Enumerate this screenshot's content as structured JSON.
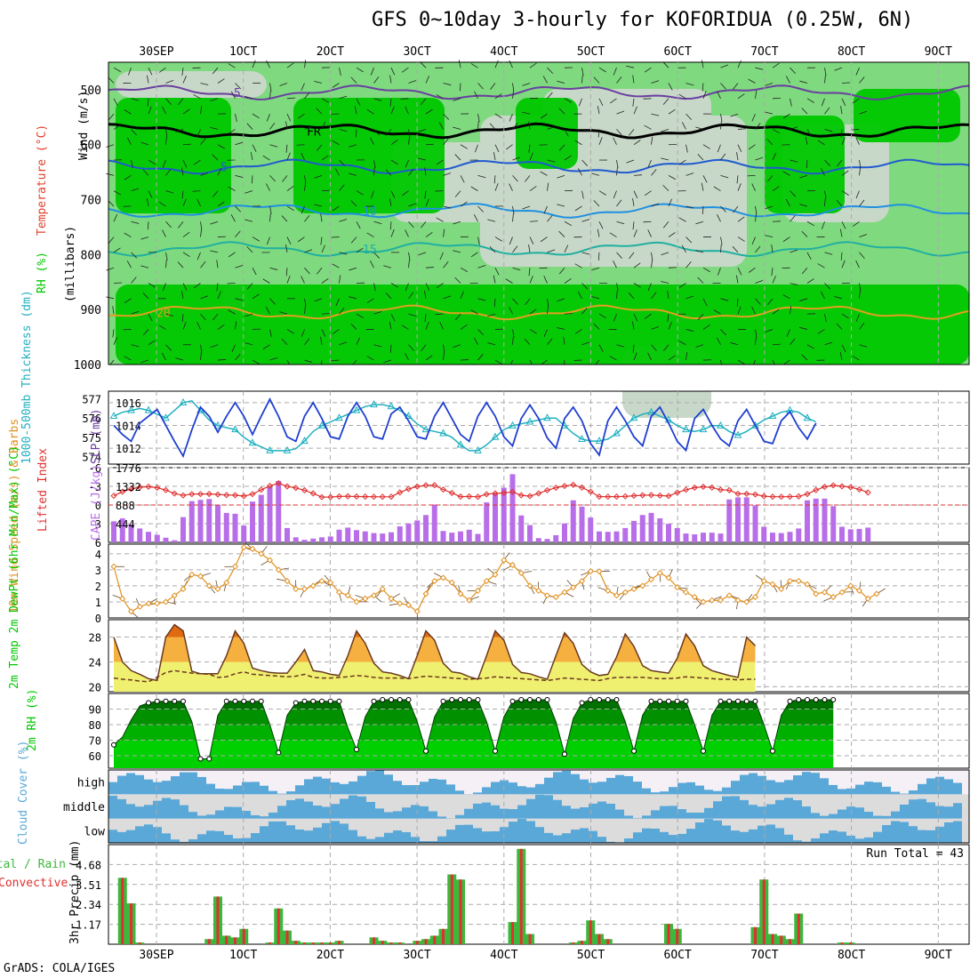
{
  "title": "GFS 0~10day 3-hourly for KOFORIDUA (0.25W, 6N)",
  "credit": "GrADS: COLA/IGES",
  "colors": {
    "rh_dark": "#00c800",
    "rh_mid": "#7fd97f",
    "rh_light": "#c8d8c8",
    "temp": "#e0412a",
    "wind": "#6a3fa0",
    "cape": "#b86ee8",
    "thick": "#20b0c0",
    "slp": "#1f3fd0",
    "wind10": "#e09020",
    "dew": "#6a3a20",
    "precip_total": "#3cb83c",
    "precip_conv": "#e03030",
    "cloud": "#5aa8d8"
  },
  "chart_data": [
    {
      "type": "heatmap",
      "name": "upper-air cross section",
      "ylabel_wind": "Wind (m/s)",
      "ylabel_temp": "Temperature (°C)",
      "ylabel_rh": "RH (%)",
      "ylabel_axis": "(millibars)",
      "x_ticks": [
        "30SEP",
        "1OCT",
        "2OCT",
        "3OCT",
        "4OCT",
        "5OCT",
        "6OCT",
        "7OCT",
        "8OCT",
        "9OCT"
      ],
      "y_ticks": [
        500,
        600,
        700,
        800,
        900,
        1000
      ],
      "ylim": [
        450,
        1000
      ],
      "isotherms": [
        {
          "label": "-5",
          "level": 505
        },
        {
          "label": "FR",
          "level": 575
        },
        {
          "label": "5",
          "level": 640
        },
        {
          "label": "10",
          "level": 720
        },
        {
          "label": "15",
          "level": 790
        },
        {
          "label": "20",
          "level": 905
        }
      ]
    },
    {
      "type": "line",
      "name": "thickness and slp",
      "ylabel_left": "1000-500mb Thickness (dm)",
      "ylabel_right": "SLP (mb)",
      "left_ticks": [
        574,
        575,
        576,
        577
      ],
      "right_ticks": [
        1012,
        1014,
        1016
      ],
      "thickness": [
        576.1,
        576.3,
        576.4,
        576.5,
        576.4,
        576.2,
        576.0,
        576.4,
        576.8,
        576.9,
        576.4,
        575.9,
        575.6,
        575.5,
        575.4,
        575.0,
        574.7,
        574.5,
        574.3,
        574.3,
        574.3,
        574.4,
        574.8,
        575.3,
        575.6,
        575.8,
        576.0,
        576.2,
        576.4,
        576.6,
        576.7,
        576.7,
        576.6,
        576.4,
        576.1,
        575.7,
        575.4,
        575.3,
        575.2,
        575.0,
        574.6,
        574.3,
        574.3,
        574.6,
        575.0,
        575.4,
        575.6,
        575.7,
        575.8,
        575.9,
        576.0,
        576.0,
        575.6,
        575.2,
        574.9,
        574.8,
        574.8,
        574.9,
        575.2,
        575.6,
        576.0,
        576.2,
        576.3,
        576.1,
        575.9,
        575.6,
        575.4,
        575.3,
        575.4,
        575.6,
        575.6,
        575.3,
        575.1,
        575.3,
        575.6,
        575.9,
        576.1,
        576.3,
        576.4,
        576.3,
        576.0,
        575.8
      ],
      "slp": [
        1014.0,
        1013.2,
        1012.6,
        1014.2,
        1014.8,
        1015.4,
        1014.0,
        1012.6,
        1011.3,
        1013.6,
        1015.6,
        1014.8,
        1013.4,
        1014.8,
        1016.0,
        1014.8,
        1013.2,
        1014.8,
        1016.3,
        1014.8,
        1013.0,
        1012.6,
        1014.8,
        1016.0,
        1014.6,
        1013.0,
        1012.8,
        1014.8,
        1016.0,
        1014.8,
        1013.0,
        1012.8,
        1015.0,
        1015.6,
        1014.4,
        1013.0,
        1012.8,
        1014.8,
        1016.0,
        1014.6,
        1013.2,
        1012.6,
        1014.8,
        1016.0,
        1014.8,
        1013.0,
        1012.2,
        1014.6,
        1015.8,
        1014.6,
        1012.9,
        1012.0,
        1014.6,
        1015.6,
        1014.4,
        1012.4,
        1011.4,
        1014.4,
        1015.6,
        1014.4,
        1013.0,
        1012.2,
        1014.8,
        1015.6,
        1014.2,
        1012.6,
        1011.8,
        1014.6,
        1015.4,
        1014.0,
        1012.8,
        1012.2,
        1014.4,
        1015.4,
        1014.0,
        1012.6,
        1012.4,
        1014.4,
        1015.2,
        1013.8,
        1012.8,
        1014.2
      ]
    },
    {
      "type": "bar",
      "name": "cape and lifted index",
      "ylabel_left": "Lifted Index",
      "ylabel_right": "CAPE (J/kg)",
      "left_ticks": [
        -6,
        -3,
        0,
        3,
        6
      ],
      "right_ticks": [
        444,
        888,
        1332,
        1776
      ],
      "cape": [
        500,
        570,
        430,
        330,
        250,
        180,
        110,
        50,
        600,
        980,
        1010,
        1030,
        880,
        700,
        680,
        400,
        970,
        1130,
        1320,
        1460,
        340,
        120,
        60,
        90,
        120,
        140,
        300,
        350,
        290,
        260,
        220,
        210,
        240,
        380,
        450,
        520,
        650,
        900,
        270,
        230,
        260,
        300,
        200,
        950,
        1180,
        1300,
        1620,
        640,
        410,
        100,
        80,
        170,
        450,
        1000,
        850,
        590,
        260,
        250,
        260,
        340,
        510,
        650,
        700,
        570,
        440,
        340,
        210,
        190,
        230,
        230,
        210,
        1020,
        1070,
        1070,
        880,
        370,
        230,
        220,
        250,
        330,
        1000,
        1040,
        1040,
        860,
        370,
        310,
        320,
        350
      ]
    },
    {
      "type": "line",
      "name": "10m wind speed",
      "ylabel": "10m Wind Speed (m/s) & Barbs",
      "y_ticks": [
        0,
        1,
        2,
        3,
        4
      ],
      "values": [
        3.2,
        1.2,
        0.4,
        0.7,
        0.9,
        0.9,
        1.0,
        1.4,
        1.8,
        2.7,
        2.6,
        2.0,
        1.8,
        2.2,
        3.2,
        4.4,
        4.3,
        4.0,
        3.6,
        3.0,
        2.3,
        1.8,
        1.8,
        2.0,
        2.3,
        2.2,
        1.6,
        1.4,
        1.0,
        1.2,
        1.4,
        1.8,
        1.2,
        0.9,
        0.8,
        0.4,
        1.5,
        2.3,
        2.5,
        2.2,
        1.5,
        1.1,
        1.7,
        2.3,
        2.7,
        3.6,
        3.3,
        2.8,
        2.0,
        1.7,
        1.4,
        1.3,
        1.6,
        1.9,
        2.3,
        2.9,
        2.9,
        1.7,
        1.4,
        1.6,
        1.8,
        2.0,
        2.4,
        2.8,
        2.5,
        1.9,
        1.6,
        1.3,
        1.0,
        1.1,
        1.1,
        1.4,
        1.1,
        1.0,
        1.3,
        2.3,
        2.1,
        1.8,
        2.3,
        2.3,
        2.1,
        1.5,
        1.6,
        1.3,
        1.6,
        2.0,
        1.7,
        1.2,
        1.5
      ]
    },
    {
      "type": "area",
      "name": "2m temperature",
      "ylabel": "2m Temp 2m DewPt (6hr Min/Max) (°C)",
      "y_ticks": [
        20,
        24,
        28
      ],
      "temp": [
        28,
        24,
        22.6,
        22,
        21.3,
        21,
        28,
        30,
        29,
        22.5,
        22.1,
        22.1,
        22.1,
        25,
        29,
        27,
        23,
        22.6,
        22.3,
        22.2,
        22.2,
        24,
        26,
        22.6,
        22.4,
        22,
        21.8,
        25,
        29,
        27,
        23.8,
        22.4,
        22.2,
        21.8,
        21.3,
        25,
        29,
        27.5,
        23.8,
        22.4,
        22.2,
        21.6,
        21.2,
        25,
        29,
        27.5,
        23.6,
        22.3,
        22.1,
        21.6,
        21.2,
        25,
        28.7,
        27,
        23.6,
        22.4,
        21.8,
        22,
        24.8,
        28.5,
        26.5,
        23.4,
        22.6,
        22.4,
        22.2,
        24.6,
        28.5,
        26.6,
        23.4,
        22.6,
        22.2,
        21.8,
        21.5,
        28,
        26.6
      ],
      "dew": [
        21.4,
        21.2,
        21.1,
        20.9,
        20.8,
        21.5,
        22.3,
        22.6,
        22.4,
        22.2,
        22.1,
        22.0,
        21.5,
        21.6,
        22.1,
        22.4,
        22.0,
        21.9,
        21.8,
        21.7,
        21.6,
        21.7,
        22.0,
        21.5,
        21.4,
        21.4,
        21.5,
        21.6,
        21.8,
        21.7,
        21.5,
        21.4,
        21.4,
        21.4,
        21.3,
        21.5,
        21.7,
        21.6,
        21.5,
        21.4,
        21.3,
        21.2,
        21.3,
        21.4,
        21.6,
        21.5,
        21.4,
        21.3,
        21.2,
        21.1,
        21.0,
        21.2,
        21.4,
        21.3,
        21.2,
        21.1,
        21.0,
        21.3,
        21.5,
        21.5,
        21.5,
        21.5,
        21.4,
        21.3,
        21.3,
        21.4,
        21.6,
        21.5,
        21.4,
        21.3,
        21.2,
        21.2,
        21.1,
        21.2,
        21.2
      ]
    },
    {
      "type": "area",
      "name": "2m relative humidity",
      "ylabel": "2m RH (%)",
      "y_ticks": [
        60,
        70,
        80,
        90
      ],
      "values": [
        67,
        72,
        83,
        92,
        94,
        95,
        95,
        95,
        95,
        82,
        58,
        58,
        86,
        95,
        95,
        95,
        95,
        95,
        80,
        62,
        86,
        94,
        95,
        95,
        95,
        95,
        95,
        78,
        64,
        85,
        95,
        96,
        96,
        96,
        96,
        82,
        63,
        85,
        95,
        96,
        96,
        96,
        96,
        82,
        63,
        85,
        95,
        96,
        96,
        96,
        96,
        82,
        61,
        84,
        94,
        96,
        96,
        96,
        96,
        82,
        63,
        86,
        95,
        95,
        95,
        95,
        95,
        80,
        63,
        86,
        95,
        95,
        95,
        95,
        95,
        80,
        63,
        86,
        95,
        96,
        96,
        96,
        96,
        96
      ]
    },
    {
      "type": "heatmap",
      "name": "cloud cover",
      "ylabel": "Cloud Cover (%)",
      "rows": [
        "high",
        "middle",
        "low"
      ]
    },
    {
      "type": "bar",
      "name": "3hr precipitation",
      "ylabel": "3hr Precip (mm)",
      "legend_left": "Total / Rain",
      "legend_conv": "Convective",
      "y_ticks": [
        1.17,
        2.34,
        3.51,
        4.68
      ],
      "run_total_label": "Run Total = 43",
      "values": [
        0,
        3.9,
        2.4,
        0.1,
        0,
        0,
        0,
        0,
        0,
        0,
        0,
        0.3,
        2.8,
        0.5,
        0.4,
        0.9,
        0,
        0,
        0.1,
        2.1,
        0.8,
        0.2,
        0.1,
        0.1,
        0.1,
        0.1,
        0.2,
        0,
        0,
        0,
        0.4,
        0.2,
        0.1,
        0.1,
        0,
        0.2,
        0.3,
        0.5,
        0.9,
        4.1,
        3.8,
        0,
        0,
        0,
        0,
        0,
        1.3,
        5.6,
        0.6,
        0,
        0,
        0,
        0,
        0.1,
        0.2,
        1.4,
        0.6,
        0.3,
        0,
        0,
        0,
        0,
        0,
        0,
        1.2,
        0.9,
        0,
        0,
        0,
        0,
        0,
        0,
        0,
        0,
        1.0,
        3.8,
        0.6,
        0.5,
        0.3,
        1.8,
        0,
        0,
        0,
        0,
        0.1,
        0.1,
        0,
        0,
        0
      ]
    }
  ]
}
